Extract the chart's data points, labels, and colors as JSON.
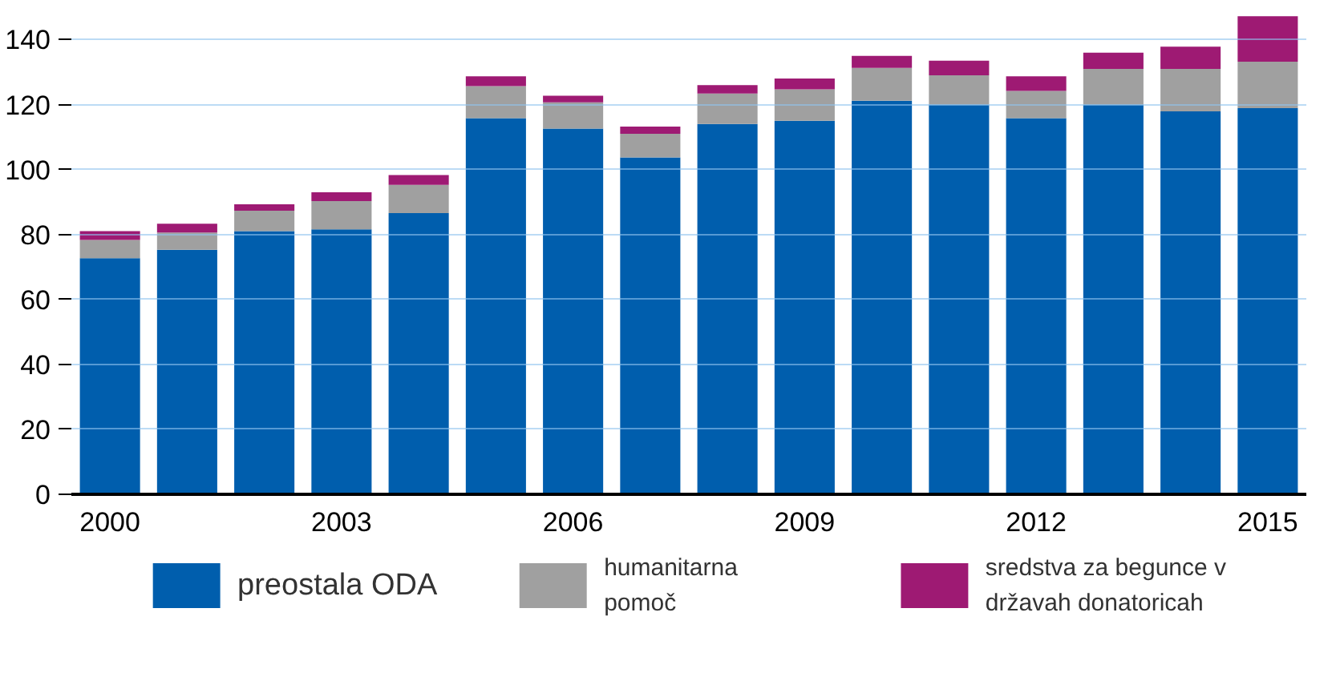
{
  "chart_data": {
    "type": "bar",
    "stacked": true,
    "x": [
      2000,
      2001,
      2002,
      2003,
      2004,
      2005,
      2006,
      2007,
      2008,
      2009,
      2010,
      2011,
      2012,
      2013,
      2014,
      2015
    ],
    "series": [
      {
        "name": "preostala ODA",
        "color": "#005ead",
        "values": [
          72.7,
          75.3,
          81.0,
          81.6,
          86.6,
          115.8,
          112.6,
          103.7,
          114.0,
          115.0,
          121.2,
          120.0,
          115.8,
          120.0,
          117.9,
          118.9
        ]
      },
      {
        "name": "humanitarna pomoč",
        "color": "#a0a0a0",
        "values": [
          5.6,
          5.3,
          6.3,
          8.7,
          8.7,
          9.9,
          8.1,
          7.3,
          9.4,
          9.7,
          10.1,
          9.0,
          8.4,
          11.0,
          13.1,
          14.3
        ]
      },
      {
        "name": "sredstva za begunce v državah donatoricah",
        "color": "#9e1a73",
        "values": [
          2.7,
          2.7,
          2.0,
          2.7,
          3.0,
          3.0,
          2.0,
          2.2,
          2.6,
          3.3,
          3.7,
          4.5,
          4.5,
          5.0,
          6.8,
          14.0
        ]
      }
    ],
    "xlim": [
      1999.5,
      2015.5
    ],
    "xticks": [
      2000,
      2003,
      2006,
      2009,
      2012,
      2015
    ],
    "ylim": [
      0,
      148
    ],
    "yticks": [
      0,
      20,
      40,
      60,
      80,
      100,
      120,
      140
    ],
    "grid": "y",
    "legend": "bottom"
  }
}
